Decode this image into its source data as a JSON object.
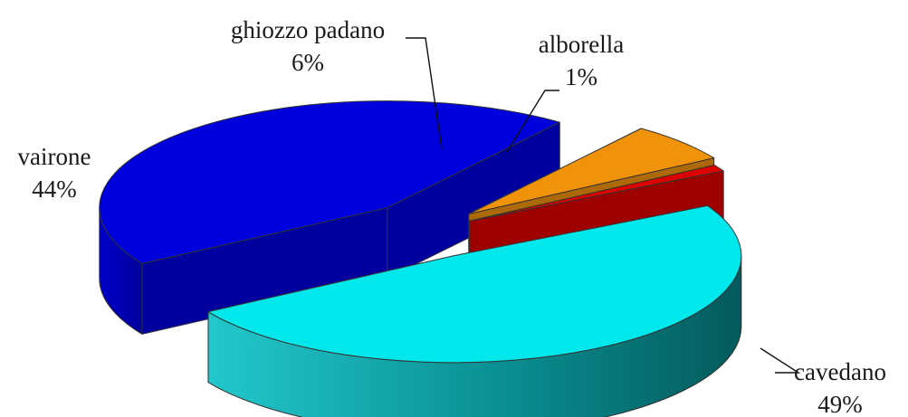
{
  "chart_data": {
    "type": "pie",
    "title": "",
    "three_d": true,
    "exploded": true,
    "legend": "none",
    "labels_position": "outside-with-leader-lines",
    "categories": [
      "cavedano",
      "vairone",
      "ghiozzo padano",
      "alborella"
    ],
    "values": [
      49,
      44,
      6,
      1
    ],
    "value_labels": [
      "49%",
      "44%",
      "6%",
      "1%"
    ],
    "colors": [
      "#00e8ec",
      "#0000dd",
      "#f0920a",
      "#dd0000"
    ]
  }
}
